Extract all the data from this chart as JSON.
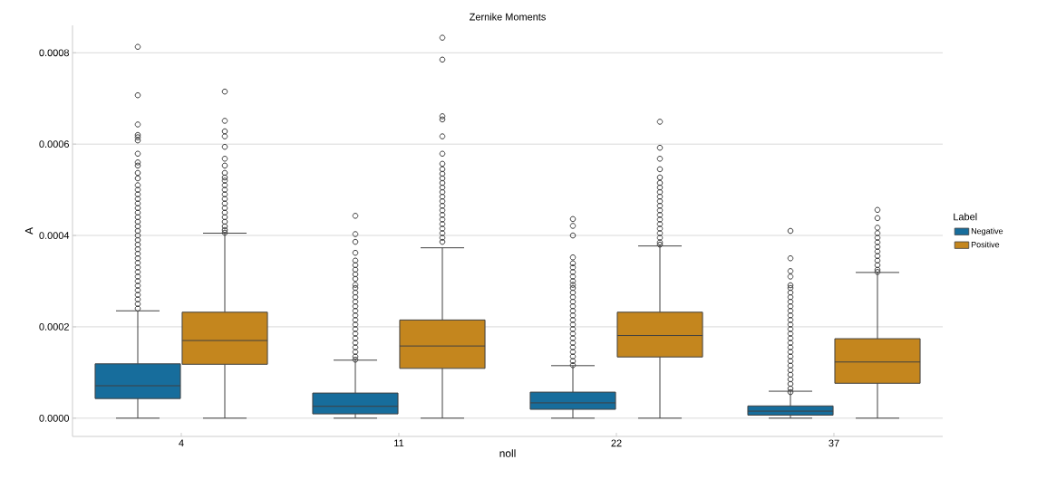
{
  "chart_data": {
    "type": "box",
    "title": "Zernike Moments",
    "xlabel": "noll",
    "ylabel": "A",
    "legend_title": "Label",
    "legend": "right",
    "grid": "y",
    "categories": [
      "4",
      "11",
      "22",
      "37"
    ],
    "ylim": [
      -4e-05,
      0.00086
    ],
    "yticks": [
      {
        "value": 0,
        "label": "0.0000"
      },
      {
        "value": 0.0002,
        "label": "0.0002"
      },
      {
        "value": 0.0004,
        "label": "0.0004"
      },
      {
        "value": 0.0006,
        "label": "0.0006"
      },
      {
        "value": 0.0008,
        "label": "0.0008"
      }
    ],
    "series": [
      {
        "name": "Negative",
        "color": "#176d9c",
        "boxes": [
          {
            "low": 0,
            "q1": 4.3e-05,
            "median": 7.1e-05,
            "q3": 0.000119,
            "high": 0.000235,
            "outliers": [
              0.000813,
              0.000707,
              0.000643,
              0.00062,
              0.000615,
              0.000608,
              0.000579,
              0.00056,
              0.000553,
              0.000537,
              0.000525,
              0.00051,
              0.0005,
              0.00049,
              0.00048,
              0.00047,
              0.00046,
              0.00045,
              0.00044,
              0.00043,
              0.00042,
              0.00041,
              0.0004,
              0.00039,
              0.00038,
              0.00037,
              0.00036,
              0.00035,
              0.00034,
              0.00033,
              0.00032,
              0.00031,
              0.0003,
              0.00029,
              0.00028,
              0.00027,
              0.00026,
              0.00025,
              0.00024
            ]
          },
          {
            "low": 0,
            "q1": 9.4e-06,
            "median": 2.6e-05,
            "q3": 5.5e-05,
            "high": 0.000127,
            "outliers": [
              0.000443,
              0.000403,
              0.000386,
              0.000362,
              0.000345,
              0.000335,
              0.000325,
              0.000315,
              0.000305,
              0.000292,
              0.000285,
              0.000275,
              0.000265,
              0.000255,
              0.000245,
              0.000235,
              0.000225,
              0.000215,
              0.000205,
              0.000195,
              0.000185,
              0.000175,
              0.000165,
              0.000155,
              0.000145,
              0.000135,
              0.000128
            ]
          },
          {
            "low": 0,
            "q1": 1.94e-05,
            "median": 3.35e-05,
            "q3": 5.7e-05,
            "high": 0.000115,
            "outliers": [
              0.000436,
              0.000421,
              0.0004,
              0.000352,
              0.000339,
              0.00033,
              0.00032,
              0.00031,
              0.0003,
              0.000292,
              0.000285,
              0.000275,
              0.000265,
              0.000255,
              0.000245,
              0.000235,
              0.000225,
              0.000215,
              0.000205,
              0.000195,
              0.000185,
              0.000175,
              0.000165,
              0.000155,
              0.000145,
              0.000135,
              0.000125,
              0.000116
            ]
          },
          {
            "low": 0,
            "q1": 6.7e-06,
            "median": 1.54e-05,
            "q3": 2.68e-05,
            "high": 5.9e-05,
            "outliers": [
              0.00041,
              0.00035,
              0.000322,
              0.00031,
              0.000291,
              0.000285,
              0.000275,
              0.000265,
              0.000255,
              0.000245,
              0.000235,
              0.000225,
              0.000215,
              0.000205,
              0.000195,
              0.000185,
              0.000175,
              0.000165,
              0.000155,
              0.000145,
              0.000135,
              0.000125,
              0.000115,
              0.000105,
              9.5e-05,
              8.5e-05,
              7.5e-05,
              6.5e-05,
              5.7e-05
            ]
          }
        ]
      },
      {
        "name": "Positive",
        "color": "#c4861e",
        "boxes": [
          {
            "low": 0,
            "q1": 0.000118,
            "median": 0.00017,
            "q3": 0.000232,
            "high": 0.000405,
            "outliers": [
              0.000715,
              0.000651,
              0.000628,
              0.000617,
              0.000594,
              0.000568,
              0.000553,
              0.000537,
              0.000527,
              0.00052,
              0.00051,
              0.0005,
              0.00049,
              0.00048,
              0.00047,
              0.00046,
              0.00045,
              0.00044,
              0.00043,
              0.00042,
              0.000412,
              0.000406
            ]
          },
          {
            "low": 0,
            "q1": 0.000109,
            "median": 0.000158,
            "q3": 0.000215,
            "high": 0.000373,
            "outliers": [
              0.000833,
              0.000785,
              0.000661,
              0.000654,
              0.000617,
              0.000579,
              0.000557,
              0.000545,
              0.000535,
              0.000525,
              0.000515,
              0.000505,
              0.000495,
              0.000485,
              0.000475,
              0.000465,
              0.000455,
              0.000445,
              0.000435,
              0.000425,
              0.000415,
              0.000405,
              0.000395,
              0.000386
            ]
          },
          {
            "low": 0,
            "q1": 0.000134,
            "median": 0.000181,
            "q3": 0.000232,
            "high": 0.000377,
            "outliers": [
              0.000649,
              0.000592,
              0.000568,
              0.000545,
              0.000527,
              0.000515,
              0.000505,
              0.000495,
              0.000485,
              0.000475,
              0.000465,
              0.000455,
              0.000445,
              0.000435,
              0.000425,
              0.000415,
              0.000405,
              0.000395,
              0.000385,
              0.00038
            ]
          },
          {
            "low": 0,
            "q1": 7.64e-05,
            "median": 0.000123,
            "q3": 0.000174,
            "high": 0.000319,
            "outliers": [
              0.000456,
              0.000438,
              0.000417,
              0.000405,
              0.000395,
              0.000385,
              0.000375,
              0.000365,
              0.000355,
              0.000345,
              0.000335,
              0.000325,
              0.00032
            ]
          }
        ]
      }
    ]
  }
}
